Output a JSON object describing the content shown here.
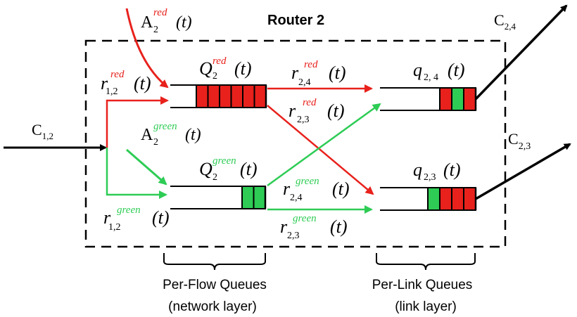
{
  "title": "Router 2",
  "flows": {
    "red": {
      "color": "#e8211c",
      "sup": "red"
    },
    "green": {
      "color": "#2ecc55",
      "sup": "green"
    }
  },
  "labels": {
    "c12": {
      "main": "C",
      "sub": "1,2"
    },
    "c24": {
      "main": "C",
      "sub": "2,4"
    },
    "c23": {
      "main": "C",
      "sub": "2,3"
    },
    "a_red": {
      "main": "A",
      "sub": "2",
      "sup": "red",
      "arg": "(t)"
    },
    "a_green": {
      "main": "A",
      "sub": "2",
      "sup": "green",
      "arg": "(t)"
    },
    "r12_red": {
      "main": "r",
      "sub": "1,2",
      "sup": "red",
      "arg": "(t)"
    },
    "r12_green": {
      "main": "r",
      "sub": "1,2",
      "sup": "green",
      "arg": "(t)"
    },
    "q_red": {
      "main": "Q",
      "sub": "2",
      "sup": "red",
      "arg": "(t)"
    },
    "q_green": {
      "main": "Q",
      "sub": "2",
      "sup": "green",
      "arg": "(t)"
    },
    "r24_red": {
      "main": "r",
      "sub": "2,4",
      "sup": "red",
      "arg": "(t)"
    },
    "r23_red": {
      "main": "r",
      "sub": "2,3",
      "sup": "red",
      "arg": "(t)"
    },
    "r24_green": {
      "main": "r",
      "sub": "2,4",
      "sup": "green",
      "arg": "(t)"
    },
    "r23_green": {
      "main": "r",
      "sub": "2,3",
      "sup": "green",
      "arg": "(t)"
    },
    "q24": {
      "main": "q",
      "sub": "2, 4",
      "arg": "(t)"
    },
    "q23": {
      "main": "q",
      "sub": "2,3",
      "arg": "(t)"
    }
  },
  "queues": {
    "flow_red": [
      "red",
      "red",
      "red",
      "red",
      "red",
      "red"
    ],
    "flow_green": [
      "green",
      "green"
    ],
    "link_24": [
      "red",
      "green",
      "red"
    ],
    "link_23": [
      "green",
      "red",
      "red",
      "red"
    ]
  },
  "captions": {
    "per_flow_line1": "Per-Flow Queues",
    "per_flow_line2": "(network layer)",
    "per_link_line1": "Per-Link Queues",
    "per_link_line2": "(link layer)"
  }
}
